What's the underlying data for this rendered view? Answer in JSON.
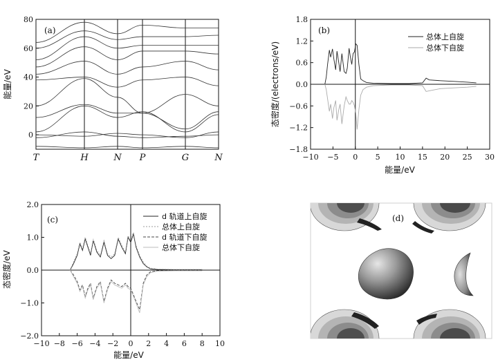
{
  "figure": {
    "panel_a": {
      "label": "(a)",
      "ylabel": "能量/eV",
      "ylim": [
        -10,
        80
      ],
      "yticks": [
        0,
        20,
        40,
        60,
        80
      ],
      "kpoints": [
        "T",
        "H",
        "N",
        "P",
        "G",
        "N"
      ]
    },
    "panel_b": {
      "label": "(b)",
      "ylabel": "态密度/(electrons/eV)",
      "xlabel": "能量/eV",
      "xlim": [
        -10,
        30
      ],
      "ylim": [
        -1.8,
        1.8
      ],
      "xticks": [
        -10,
        -5,
        0,
        5,
        10,
        15,
        20,
        25,
        30
      ],
      "yticks": [
        "1.8",
        "1.2",
        "0.6",
        "0.0",
        "-0.6",
        "-1.2",
        "-1.8"
      ],
      "legend": [
        "总体上自旋",
        "总体下自旋"
      ]
    },
    "panel_c": {
      "label": "(c)",
      "ylabel": "态密度/eV",
      "xlabel": "能量/eV",
      "xlim": [
        -10,
        10
      ],
      "ylim": [
        -2.0,
        2.0
      ],
      "xticks": [
        -10,
        -8,
        -6,
        -4,
        -2,
        0,
        2,
        4,
        6,
        8,
        10
      ],
      "yticks": [
        "2.0",
        "1.0",
        "0.0",
        "-1.0",
        "-2.0"
      ],
      "legend": [
        "d 轨道上自旋",
        "总体上自旋",
        "d 轨道下自旋",
        "总体下自旋"
      ]
    },
    "panel_d": {
      "label": "(d)"
    }
  },
  "chart_data": [
    {
      "type": "line",
      "title": "",
      "ylabel": "能量/eV",
      "ylim": [
        -10,
        80
      ],
      "x_labels": [
        "T",
        "H",
        "N",
        "P",
        "G",
        "N"
      ],
      "series": [
        {
          "values": [
            -8,
            -9,
            -8,
            -9,
            -8,
            -9
          ]
        },
        {
          "values": [
            -2,
            2,
            -1,
            -2,
            -1,
            0
          ]
        },
        {
          "values": [
            0,
            -1,
            1,
            0,
            -2,
            2
          ]
        },
        {
          "values": [
            2,
            20,
            12,
            16,
            2,
            14
          ]
        },
        {
          "values": [
            12,
            21,
            15,
            15,
            4,
            16
          ]
        },
        {
          "values": [
            20,
            39,
            26,
            15,
            28,
            20
          ]
        },
        {
          "values": [
            38,
            40,
            33,
            38,
            40,
            34
          ]
        },
        {
          "values": [
            42,
            51,
            42,
            47,
            51,
            45
          ]
        },
        {
          "values": [
            47,
            61,
            52,
            58,
            58,
            56
          ]
        },
        {
          "values": [
            52,
            68,
            60,
            62,
            62,
            62
          ]
        },
        {
          "values": [
            60,
            72,
            66,
            68,
            68,
            69
          ]
        },
        {
          "values": [
            64,
            78,
            70,
            76,
            74,
            74
          ]
        }
      ]
    },
    {
      "type": "line",
      "title": "",
      "xlabel": "能量/eV",
      "ylabel": "态密度/(electrons/eV)",
      "xlim": [
        -10,
        30
      ],
      "ylim": [
        -1.8,
        1.8
      ],
      "series": [
        {
          "name": "总体上自旋",
          "x": [
            -6.8,
            -6.5,
            -6.2,
            -5.8,
            -5.5,
            -5.1,
            -4.8,
            -4.4,
            -4.1,
            -3.7,
            -3.4,
            -3.0,
            -2.5,
            -2.1,
            -1.8,
            -1.4,
            -1.1,
            -0.8,
            -0.5,
            -0.2,
            0.1,
            0.4,
            0.8,
            1.2,
            1.7,
            2.5,
            4.0,
            8.0,
            12.0,
            15.0,
            15.8,
            16.5,
            19.0,
            22.0,
            25.0,
            27.0
          ],
          "y": [
            0.0,
            0.2,
            0.55,
            0.95,
            0.75,
            0.98,
            0.7,
            0.4,
            0.92,
            0.6,
            0.35,
            0.85,
            0.35,
            0.3,
            0.45,
            1.0,
            0.75,
            0.55,
            0.85,
            0.9,
            1.12,
            1.08,
            0.55,
            0.15,
            0.1,
            0.05,
            0.03,
            0.02,
            0.02,
            0.04,
            0.17,
            0.12,
            0.1,
            0.08,
            0.06,
            0.04
          ]
        },
        {
          "name": "总体下自旋",
          "x": [
            -6.8,
            -6.5,
            -6.2,
            -5.8,
            -5.5,
            -5.1,
            -4.8,
            -4.4,
            -4.1,
            -3.7,
            -3.4,
            -3.0,
            -2.5,
            -2.1,
            -1.8,
            -1.4,
            -1.1,
            -0.8,
            -0.5,
            -0.2,
            0.1,
            0.4,
            0.8,
            1.2,
            1.7,
            2.5,
            4.0,
            8.0,
            12.0,
            15.0,
            15.8,
            16.5,
            19.0,
            22.0,
            25.0,
            27.0
          ],
          "y": [
            0.0,
            -0.15,
            -0.4,
            -0.75,
            -0.55,
            -0.95,
            -0.65,
            -0.45,
            -1.0,
            -0.7,
            -0.55,
            -1.1,
            -0.6,
            -0.35,
            -0.45,
            -0.55,
            -0.55,
            -0.45,
            -0.5,
            -0.6,
            -0.8,
            -1.25,
            -0.7,
            -0.3,
            -0.15,
            -0.08,
            -0.04,
            -0.02,
            -0.02,
            -0.04,
            -0.2,
            -0.18,
            -0.12,
            -0.1,
            -0.08,
            -0.06
          ]
        }
      ]
    },
    {
      "type": "line",
      "title": "",
      "xlabel": "能量/eV",
      "ylabel": "态密度/eV",
      "xlim": [
        -10,
        10
      ],
      "ylim": [
        -2.0,
        2.0
      ],
      "series": [
        {
          "name": "d 轨道上自旋",
          "x": [
            -6.8,
            -6.4,
            -6.0,
            -5.7,
            -5.4,
            -5.1,
            -4.8,
            -4.5,
            -4.2,
            -3.8,
            -3.4,
            -3.0,
            -2.6,
            -2.2,
            -1.8,
            -1.4,
            -1.0,
            -0.6,
            -0.3,
            0.0,
            0.3,
            0.6,
            1.0,
            1.4,
            1.8,
            2.2,
            3.0,
            5.0,
            8.0
          ],
          "y": [
            0.0,
            0.2,
            0.45,
            0.8,
            0.6,
            0.95,
            0.7,
            0.45,
            0.9,
            0.55,
            0.4,
            0.85,
            0.45,
            0.35,
            0.45,
            0.95,
            0.7,
            0.5,
            1.0,
            0.85,
            1.1,
            0.7,
            0.4,
            0.2,
            0.1,
            0.04,
            0.02,
            0.01,
            0.01
          ]
        },
        {
          "name": "总体上自旋",
          "x": [
            -6.8,
            -6.4,
            -6.0,
            -5.7,
            -5.4,
            -5.1,
            -4.8,
            -4.5,
            -4.2,
            -3.8,
            -3.4,
            -3.0,
            -2.6,
            -2.2,
            -1.8,
            -1.4,
            -1.0,
            -0.6,
            -0.3,
            0.0,
            0.3,
            0.6,
            1.0,
            1.4,
            1.8,
            2.2,
            3.0,
            5.0,
            8.0
          ],
          "y": [
            0.0,
            0.25,
            0.5,
            0.85,
            0.65,
            1.0,
            0.75,
            0.5,
            0.95,
            0.6,
            0.45,
            0.9,
            0.5,
            0.4,
            0.5,
            1.0,
            0.75,
            0.55,
            1.05,
            0.9,
            1.15,
            0.75,
            0.45,
            0.25,
            0.12,
            0.06,
            0.03,
            0.02,
            0.02
          ]
        },
        {
          "name": "d 轨道下自旋",
          "x": [
            -6.8,
            -6.4,
            -6.0,
            -5.7,
            -5.4,
            -5.1,
            -4.8,
            -4.5,
            -4.2,
            -3.8,
            -3.4,
            -3.0,
            -2.6,
            -2.2,
            -1.8,
            -1.4,
            -1.0,
            -0.6,
            -0.3,
            0.0,
            0.3,
            0.6,
            1.0,
            1.4,
            1.8,
            2.2,
            3.0,
            5.0,
            8.0
          ],
          "y": [
            0.0,
            -0.15,
            -0.35,
            -0.6,
            -0.45,
            -0.8,
            -0.55,
            -0.4,
            -0.85,
            -0.5,
            -0.35,
            -0.95,
            -0.55,
            -0.3,
            -0.4,
            -0.45,
            -0.5,
            -0.4,
            -0.5,
            -0.55,
            -0.75,
            -0.95,
            -1.2,
            -0.4,
            -0.15,
            -0.05,
            -0.02,
            -0.01,
            -0.01
          ]
        },
        {
          "name": "总体下自旋",
          "x": [
            -6.8,
            -6.4,
            -6.0,
            -5.7,
            -5.4,
            -5.1,
            -4.8,
            -4.5,
            -4.2,
            -3.8,
            -3.4,
            -3.0,
            -2.6,
            -2.2,
            -1.8,
            -1.4,
            -1.0,
            -0.6,
            -0.3,
            0.0,
            0.3,
            0.6,
            1.0,
            1.4,
            1.8,
            2.2,
            3.0,
            5.0,
            8.0
          ],
          "y": [
            0.0,
            -0.2,
            -0.4,
            -0.65,
            -0.5,
            -0.85,
            -0.6,
            -0.45,
            -0.9,
            -0.55,
            -0.4,
            -1.0,
            -0.6,
            -0.35,
            -0.45,
            -0.5,
            -0.55,
            -0.45,
            -0.55,
            -0.6,
            -0.8,
            -1.0,
            -1.3,
            -0.45,
            -0.2,
            -0.08,
            -0.03,
            -0.02,
            -0.02
          ]
        }
      ]
    }
  ]
}
